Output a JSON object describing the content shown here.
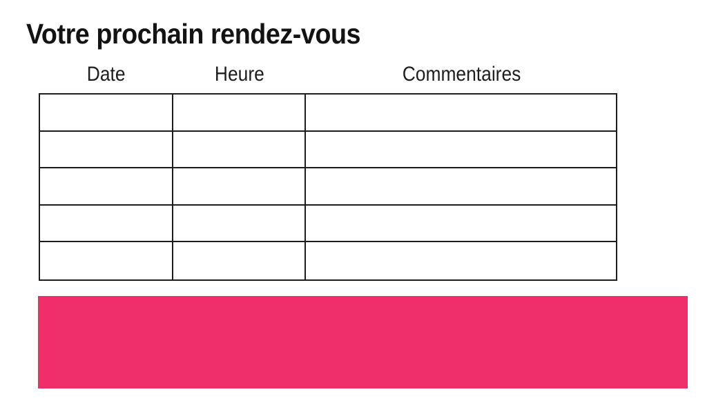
{
  "page": {
    "title": "Votre prochain rendez-vous"
  },
  "appointments_table": {
    "headers": [
      "Date",
      "Heure",
      "Commentaires"
    ],
    "rows": [
      [
        "",
        "",
        ""
      ],
      [
        "",
        "",
        ""
      ],
      [
        "",
        "",
        ""
      ],
      [
        "",
        "",
        ""
      ],
      [
        "",
        "",
        ""
      ]
    ]
  },
  "banner": {
    "text": ""
  },
  "colors": {
    "accent_pink": "#ED2E68",
    "table_border": "#1C1C1C",
    "text": "#131313"
  }
}
